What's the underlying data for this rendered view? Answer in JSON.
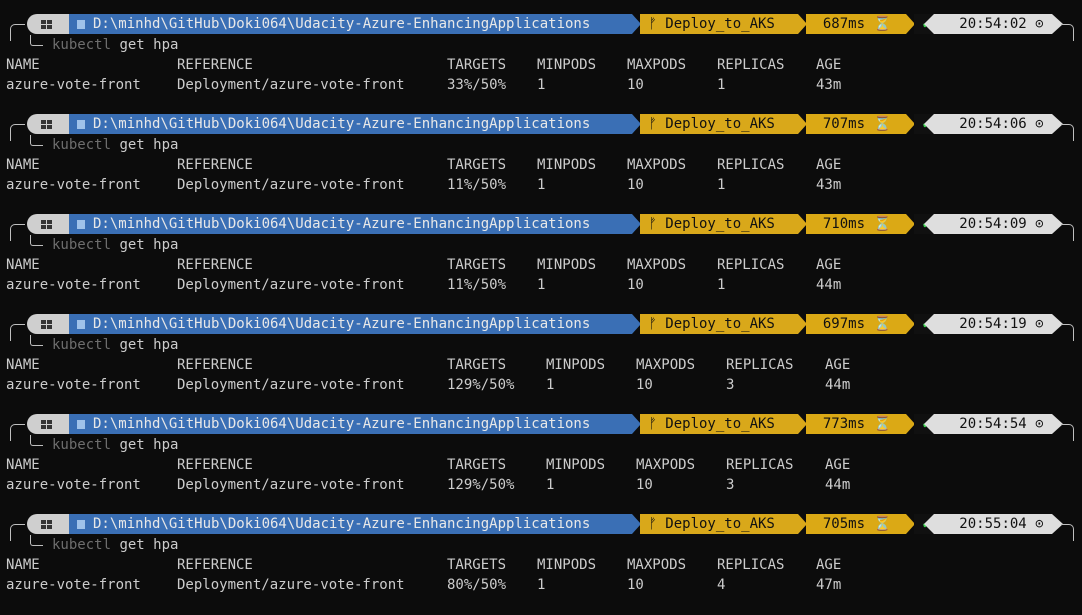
{
  "prompt": {
    "path": "D:\\minhd\\GitHub\\Doki064\\Udacity-Azure-EnhancingApplications",
    "branch": "Deploy_to_AKS",
    "check": "✔",
    "hourglass": "⏳",
    "clock": "⊙",
    "branch_icon": "ᚠ",
    "os_icon": "windows-icon"
  },
  "command": {
    "exe": "kubectl",
    "args": "get hpa"
  },
  "headers": [
    "NAME",
    "REFERENCE",
    "TARGETS",
    "MINPODS",
    "MAXPODS",
    "REPLICAS",
    "AGE"
  ],
  "blocks": [
    {
      "duration": "687ms",
      "time": "20:54:02",
      "row": [
        "azure-vote-front",
        "Deployment/azure-vote-front",
        "33%/50%",
        "1",
        "10",
        "1",
        "43m"
      ]
    },
    {
      "duration": "707ms",
      "time": "20:54:06",
      "row": [
        "azure-vote-front",
        "Deployment/azure-vote-front",
        "11%/50%",
        "1",
        "10",
        "1",
        "43m"
      ]
    },
    {
      "duration": "710ms",
      "time": "20:54:09",
      "row": [
        "azure-vote-front",
        "Deployment/azure-vote-front",
        "11%/50%",
        "1",
        "10",
        "1",
        "44m"
      ]
    },
    {
      "duration": "697ms",
      "time": "20:54:19",
      "row": [
        "azure-vote-front",
        "Deployment/azure-vote-front",
        "129%/50%",
        "1",
        "10",
        "3",
        "44m"
      ]
    },
    {
      "duration": "773ms",
      "time": "20:54:54",
      "row": [
        "azure-vote-front",
        "Deployment/azure-vote-front",
        "129%/50%",
        "1",
        "10",
        "3",
        "44m"
      ]
    },
    {
      "duration": "705ms",
      "time": "20:55:04",
      "row": [
        "azure-vote-front",
        "Deployment/azure-vote-front",
        "80%/50%",
        "1",
        "10",
        "4",
        "47m"
      ]
    }
  ],
  "colors": {
    "background": "#0c0c0c",
    "path_segment": "#3a6fb5",
    "git_segment": "#d9a81a",
    "duration_segment": "#dba915",
    "time_segment": "#dedede",
    "check": "#3bd24f"
  }
}
